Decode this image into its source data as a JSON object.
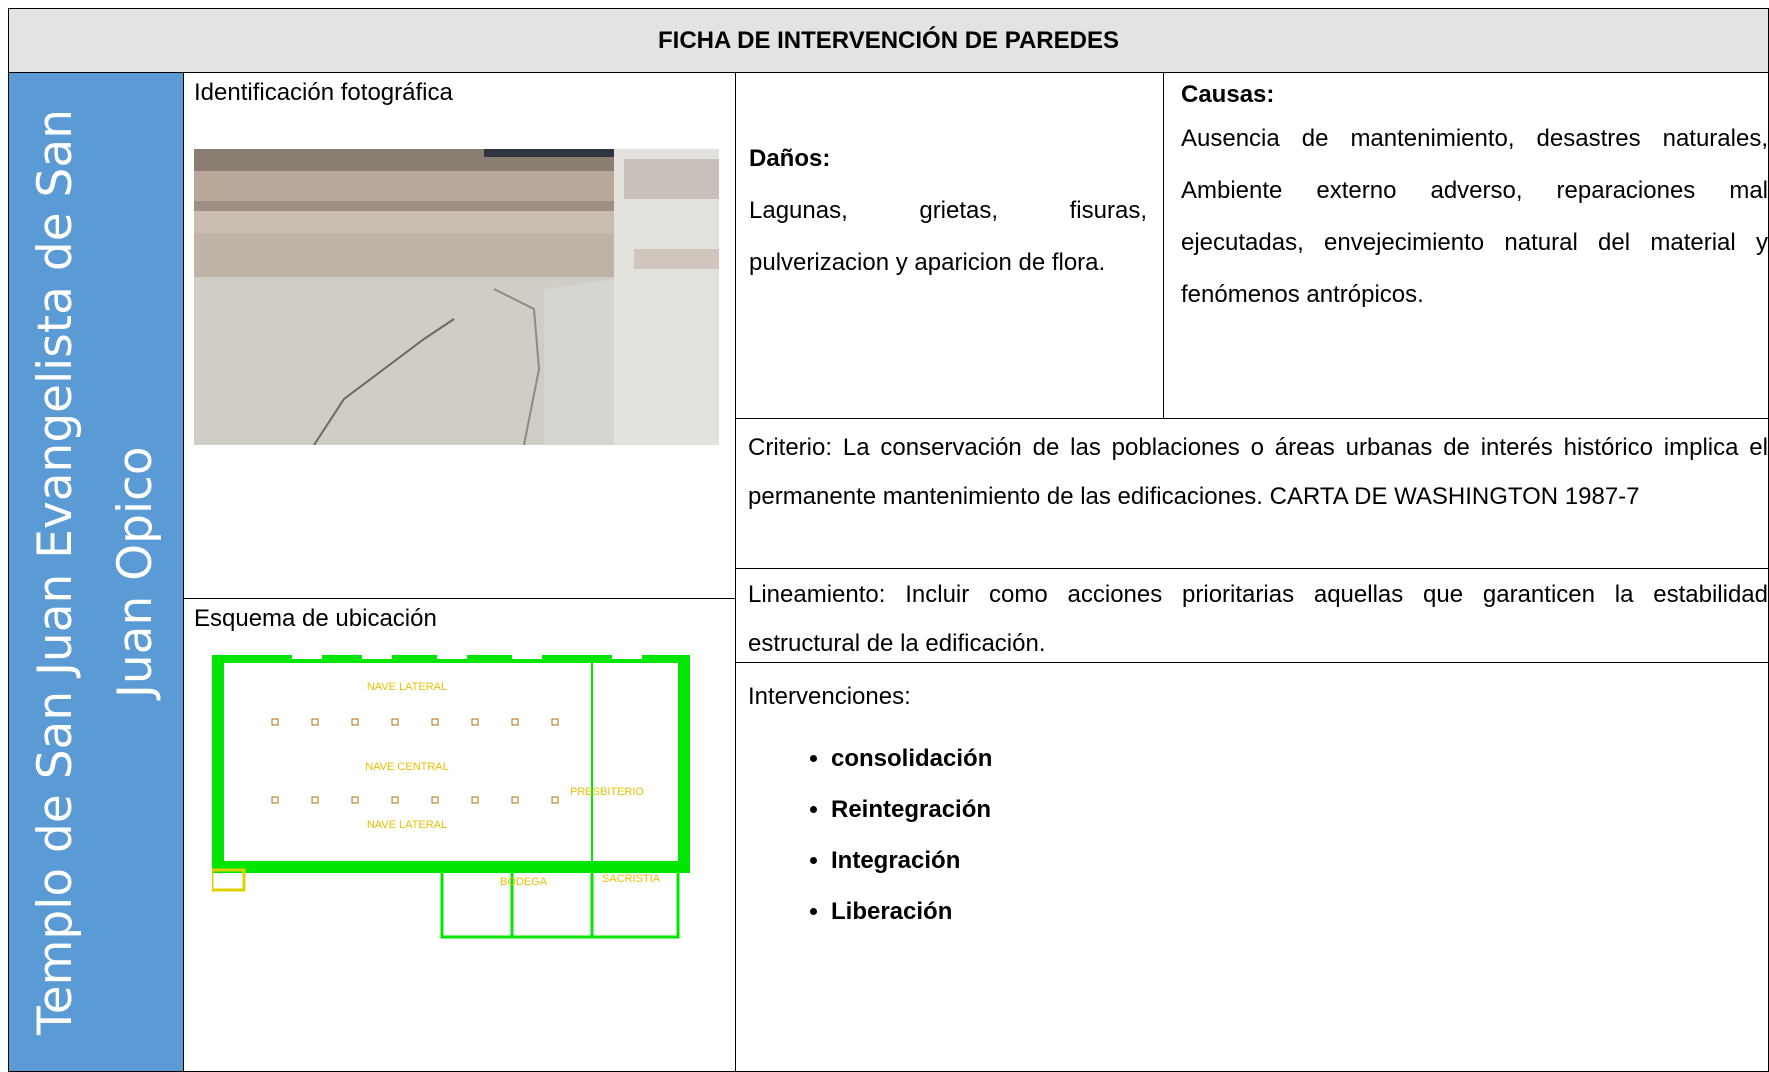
{
  "header": {
    "title": "FICHA DE INTERVENCIÓN DE PAREDES"
  },
  "side_label": "Templo de San Juan Evangelista de San Juan Opico",
  "photo": {
    "label": "Identificación fotográfica"
  },
  "plan": {
    "label": "Esquema de ubicación",
    "rooms": [
      "NAVE LATERAL",
      "NAVE CENTRAL",
      "NAVE LATERAL",
      "PRESBITERIO",
      "BODEGA",
      "SACRISTIA"
    ]
  },
  "danos": {
    "heading": "Daños:",
    "text": "Lagunas, grietas, fisuras, pulverizacion y aparicion de flora."
  },
  "causas": {
    "heading": "Causas:",
    "text": "Ausencia de mantenimiento, desastres naturales, Ambiente externo adverso, reparaciones mal ejecutadas, envejecimiento natural del material y fenómenos antrópicos."
  },
  "criterio": "Criterio: La conservación de las poblaciones o áreas urbanas de interés histórico implica el permanente mantenimiento de las edificaciones. CARTA DE WASHINGTON 1987-7",
  "lineamiento": "Lineamiento: Incluir como acciones prioritarias aquellas que garanticen la estabilidad estructural de la edificación.",
  "intervenciones": {
    "heading": "Intervenciones:",
    "items": [
      "consolidación",
      "Reintegración",
      "Integración",
      "Liberación"
    ]
  }
}
